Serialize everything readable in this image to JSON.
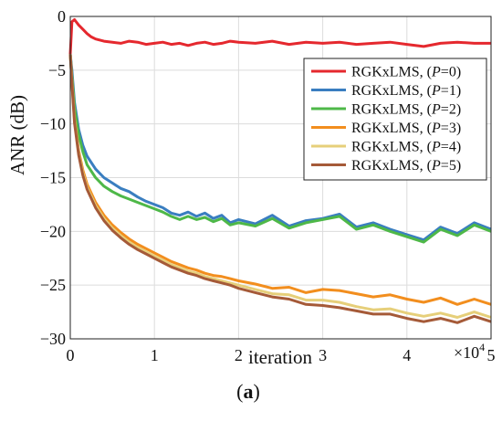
{
  "chart_data": {
    "type": "line",
    "xlabel": "iteration",
    "ylabel": "ANR (dB)",
    "x_multiplier_label": "×10",
    "x_multiplier_exp": "4",
    "caption_letter": "a",
    "xlim": [
      0,
      5
    ],
    "ylim": [
      -30,
      0
    ],
    "x_ticks": [
      0,
      1,
      2,
      3,
      4,
      5
    ],
    "y_ticks": [
      0,
      -5,
      -10,
      -15,
      -20,
      -25,
      -30
    ],
    "grid": true,
    "legend_position": "top-right",
    "series": [
      {
        "name": "RGKxLMS, (P=0)",
        "prefix": "RGKxLMS, (",
        "var": "P",
        "suffix": "=0)",
        "color": "#e5282e",
        "x": [
          0,
          0.02,
          0.05,
          0.1,
          0.15,
          0.2,
          0.25,
          0.3,
          0.4,
          0.5,
          0.6,
          0.7,
          0.8,
          0.9,
          1.0,
          1.1,
          1.2,
          1.3,
          1.4,
          1.5,
          1.6,
          1.7,
          1.8,
          1.9,
          2.0,
          2.2,
          2.4,
          2.6,
          2.8,
          3.0,
          3.2,
          3.4,
          3.6,
          3.8,
          4.0,
          4.2,
          4.4,
          4.6,
          4.8,
          5.0
        ],
        "y": [
          -3.5,
          -0.5,
          -0.3,
          -0.8,
          -1.2,
          -1.6,
          -1.9,
          -2.1,
          -2.3,
          -2.4,
          -2.5,
          -2.3,
          -2.4,
          -2.6,
          -2.5,
          -2.4,
          -2.6,
          -2.5,
          -2.7,
          -2.5,
          -2.4,
          -2.6,
          -2.5,
          -2.3,
          -2.4,
          -2.5,
          -2.3,
          -2.6,
          -2.4,
          -2.5,
          -2.4,
          -2.6,
          -2.5,
          -2.4,
          -2.6,
          -2.8,
          -2.5,
          -2.4,
          -2.5,
          -2.5
        ]
      },
      {
        "name": "RGKxLMS, (P=1)",
        "prefix": "RGKxLMS, (",
        "var": "P",
        "suffix": "=1)",
        "color": "#3a7ec0",
        "x": [
          0,
          0.02,
          0.05,
          0.1,
          0.15,
          0.2,
          0.3,
          0.4,
          0.5,
          0.6,
          0.7,
          0.8,
          0.9,
          1.0,
          1.1,
          1.2,
          1.3,
          1.4,
          1.5,
          1.6,
          1.7,
          1.8,
          1.9,
          2.0,
          2.2,
          2.4,
          2.6,
          2.8,
          3.0,
          3.2,
          3.4,
          3.6,
          3.8,
          4.0,
          4.2,
          4.4,
          4.6,
          4.8,
          5.0
        ],
        "y": [
          -3.5,
          -5.0,
          -8.0,
          -10.5,
          -12.0,
          -13.0,
          -14.2,
          -15.0,
          -15.5,
          -16.0,
          -16.3,
          -16.8,
          -17.2,
          -17.5,
          -17.8,
          -18.3,
          -18.5,
          -18.2,
          -18.6,
          -18.3,
          -18.8,
          -18.5,
          -19.2,
          -18.9,
          -19.3,
          -18.5,
          -19.5,
          -19.0,
          -18.8,
          -18.4,
          -19.6,
          -19.2,
          -19.8,
          -20.3,
          -20.8,
          -19.6,
          -20.2,
          -19.2,
          -19.8
        ]
      },
      {
        "name": "RGKxLMS, (P=2)",
        "prefix": "RGKxLMS, (",
        "var": "P",
        "suffix": "=2)",
        "color": "#4eb848",
        "x": [
          0,
          0.02,
          0.05,
          0.1,
          0.15,
          0.2,
          0.3,
          0.4,
          0.5,
          0.6,
          0.7,
          0.8,
          0.9,
          1.0,
          1.1,
          1.2,
          1.3,
          1.4,
          1.5,
          1.6,
          1.7,
          1.8,
          1.9,
          2.0,
          2.2,
          2.4,
          2.6,
          2.8,
          3.0,
          3.2,
          3.4,
          3.6,
          3.8,
          4.0,
          4.2,
          4.4,
          4.6,
          4.8,
          5.0
        ],
        "y": [
          -3.5,
          -5.5,
          -8.5,
          -11.0,
          -12.6,
          -13.8,
          -15.0,
          -15.8,
          -16.3,
          -16.7,
          -17.0,
          -17.3,
          -17.6,
          -17.9,
          -18.2,
          -18.6,
          -18.9,
          -18.6,
          -18.9,
          -18.7,
          -19.1,
          -18.8,
          -19.4,
          -19.2,
          -19.5,
          -18.8,
          -19.7,
          -19.2,
          -18.9,
          -18.6,
          -19.8,
          -19.4,
          -20.0,
          -20.5,
          -21.0,
          -19.8,
          -20.4,
          -19.4,
          -20.0
        ]
      },
      {
        "name": "RGKxLMS, (P=3)",
        "prefix": "RGKxLMS, (",
        "var": "P",
        "suffix": "=3)",
        "color": "#f28e1e",
        "x": [
          0,
          0.02,
          0.05,
          0.1,
          0.15,
          0.2,
          0.3,
          0.4,
          0.5,
          0.6,
          0.7,
          0.8,
          0.9,
          1.0,
          1.1,
          1.2,
          1.3,
          1.4,
          1.5,
          1.6,
          1.7,
          1.8,
          1.9,
          2.0,
          2.2,
          2.4,
          2.6,
          2.8,
          3.0,
          3.2,
          3.4,
          3.6,
          3.8,
          4.0,
          4.2,
          4.4,
          4.6,
          4.8,
          5.0
        ],
        "y": [
          -3.5,
          -6.0,
          -9.5,
          -12.5,
          -14.3,
          -15.6,
          -17.3,
          -18.5,
          -19.4,
          -20.1,
          -20.7,
          -21.2,
          -21.6,
          -22.0,
          -22.4,
          -22.8,
          -23.1,
          -23.4,
          -23.6,
          -23.9,
          -24.1,
          -24.2,
          -24.4,
          -24.6,
          -24.9,
          -25.3,
          -25.2,
          -25.7,
          -25.4,
          -25.5,
          -25.8,
          -26.1,
          -25.9,
          -26.3,
          -26.6,
          -26.2,
          -26.8,
          -26.3,
          -26.8
        ]
      },
      {
        "name": "RGKxLMS, (P=4)",
        "prefix": "RGKxLMS, (",
        "var": "P",
        "suffix": "=4)",
        "color": "#e6cf7a",
        "x": [
          0,
          0.02,
          0.05,
          0.1,
          0.15,
          0.2,
          0.3,
          0.4,
          0.5,
          0.6,
          0.7,
          0.8,
          0.9,
          1.0,
          1.1,
          1.2,
          1.3,
          1.4,
          1.5,
          1.6,
          1.7,
          1.8,
          1.9,
          2.0,
          2.2,
          2.4,
          2.6,
          2.8,
          3.0,
          3.2,
          3.4,
          3.6,
          3.8,
          4.0,
          4.2,
          4.4,
          4.6,
          4.8,
          5.0
        ],
        "y": [
          -3.5,
          -6.1,
          -9.7,
          -12.7,
          -14.6,
          -15.9,
          -17.6,
          -18.8,
          -19.7,
          -20.4,
          -21.0,
          -21.5,
          -21.9,
          -22.3,
          -22.7,
          -23.1,
          -23.4,
          -23.7,
          -23.9,
          -24.2,
          -24.4,
          -24.6,
          -24.8,
          -25.0,
          -25.4,
          -25.8,
          -25.9,
          -26.4,
          -26.4,
          -26.6,
          -27.0,
          -27.3,
          -27.2,
          -27.6,
          -27.9,
          -27.6,
          -28.0,
          -27.5,
          -28.0
        ]
      },
      {
        "name": "RGKxLMS, (P=5)",
        "prefix": "RGKxLMS, (",
        "var": "P",
        "suffix": "=5)",
        "color": "#a55a38",
        "x": [
          0,
          0.02,
          0.05,
          0.1,
          0.15,
          0.2,
          0.3,
          0.4,
          0.5,
          0.6,
          0.7,
          0.8,
          0.9,
          1.0,
          1.1,
          1.2,
          1.3,
          1.4,
          1.5,
          1.6,
          1.7,
          1.8,
          1.9,
          2.0,
          2.2,
          2.4,
          2.6,
          2.8,
          3.0,
          3.2,
          3.4,
          3.6,
          3.8,
          4.0,
          4.2,
          4.4,
          4.6,
          4.8,
          5.0
        ],
        "y": [
          -3.5,
          -6.2,
          -9.9,
          -12.9,
          -14.8,
          -16.1,
          -17.8,
          -19.0,
          -19.9,
          -20.6,
          -21.2,
          -21.7,
          -22.1,
          -22.5,
          -22.9,
          -23.3,
          -23.6,
          -23.9,
          -24.1,
          -24.4,
          -24.6,
          -24.8,
          -25.0,
          -25.3,
          -25.7,
          -26.1,
          -26.3,
          -26.8,
          -26.9,
          -27.1,
          -27.4,
          -27.7,
          -27.7,
          -28.1,
          -28.4,
          -28.1,
          -28.5,
          -27.9,
          -28.4
        ]
      }
    ]
  }
}
